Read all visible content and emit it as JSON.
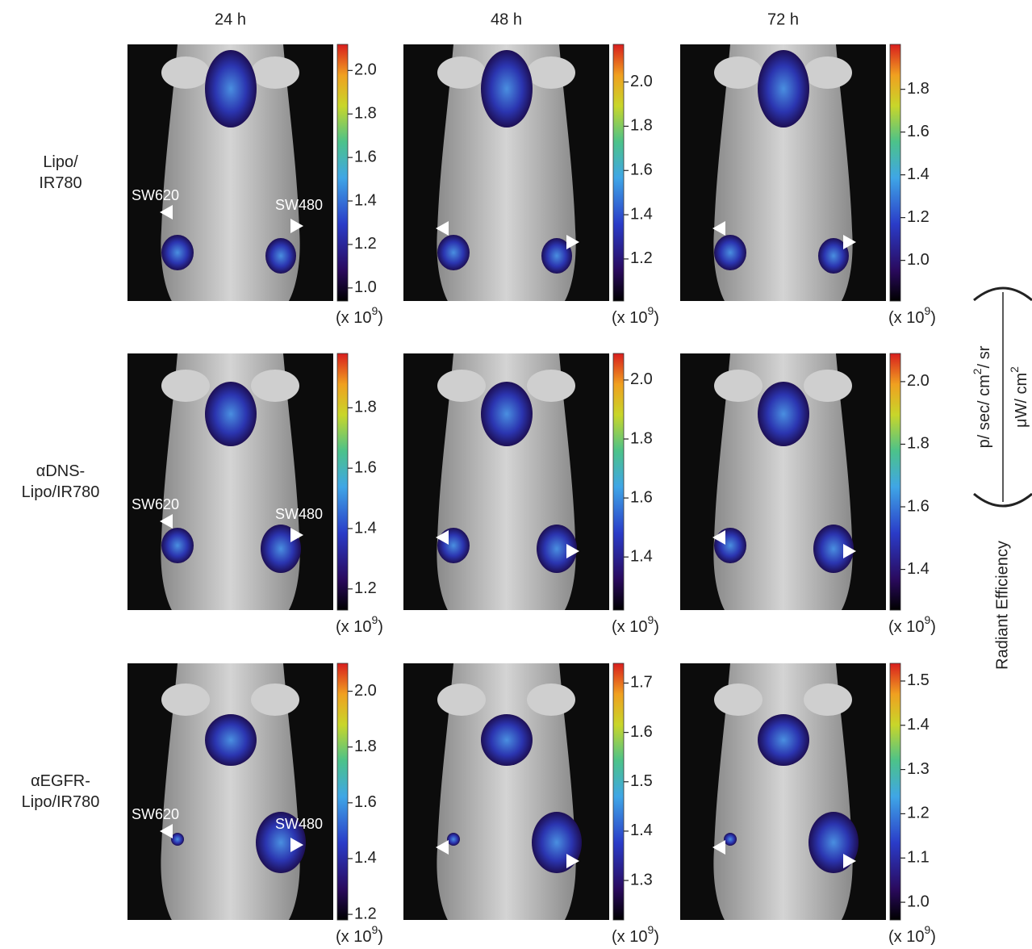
{
  "columns": [
    "24 h",
    "48 h",
    "72 h"
  ],
  "rows": [
    {
      "label": [
        "Lipo/",
        "IR780"
      ],
      "panels": [
        {
          "clim": [
            0.94,
            2.12
          ],
          "ticks": [
            {
              "value": 1,
              "label": "1.0"
            },
            1.2,
            1.4,
            1.6,
            1.8,
            {
              "value": 2,
              "label": "2.0"
            }
          ]
        },
        {
          "clim": [
            1.01,
            2.17
          ],
          "ticks": [
            1.2,
            1.4,
            1.6,
            1.8,
            {
              "value": 2,
              "label": "2.0"
            }
          ]
        },
        {
          "clim": [
            0.81,
            2.01
          ],
          "ticks": [
            {
              "value": 1,
              "label": "1.0"
            },
            1.2,
            1.4,
            1.6,
            1.8
          ]
        }
      ]
    },
    {
      "label": [
        "αDNS-",
        "Lipo/IR780"
      ],
      "panels": [
        {
          "clim": [
            1.13,
            1.98
          ],
          "ticks": [
            1.2,
            1.4,
            1.6,
            1.8
          ]
        },
        {
          "clim": [
            1.22,
            2.09
          ],
          "ticks": [
            1.4,
            1.6,
            1.8,
            {
              "value": 2,
              "label": "2.0"
            }
          ]
        },
        {
          "clim": [
            1.27,
            2.09
          ],
          "ticks": [
            1.4,
            1.6,
            1.8,
            {
              "value": 2,
              "label": "2.0"
            }
          ]
        }
      ]
    },
    {
      "label": [
        "αEGFR-",
        "Lipo/IR780"
      ],
      "panels": [
        {
          "clim": [
            1.18,
            2.1
          ],
          "ticks": [
            1.2,
            1.4,
            1.6,
            1.8,
            {
              "value": 2,
              "label": "2.0"
            }
          ]
        },
        {
          "clim": [
            1.22,
            1.74
          ],
          "ticks": [
            1.3,
            1.4,
            1.5,
            1.6,
            1.7
          ]
        },
        {
          "clim": [
            0.96,
            1.54
          ],
          "ticks": [
            {
              "value": 1,
              "label": "1.0"
            },
            1.1,
            1.2,
            1.3,
            1.4,
            1.5
          ]
        }
      ]
    }
  ],
  "annotations": {
    "left": "SW620",
    "right": "SW480"
  },
  "multiplier": {
    "base": "(x 10",
    "exponent": "9",
    "close": ")"
  },
  "colorbar_label": {
    "title": "Radiant Efficiency",
    "numerator": {
      "base": "p/ sec/ cm",
      "exponent": "2",
      "end": "/ sr"
    },
    "denominator": {
      "base": "μW/ cm",
      "exponent": "2"
    }
  }
}
